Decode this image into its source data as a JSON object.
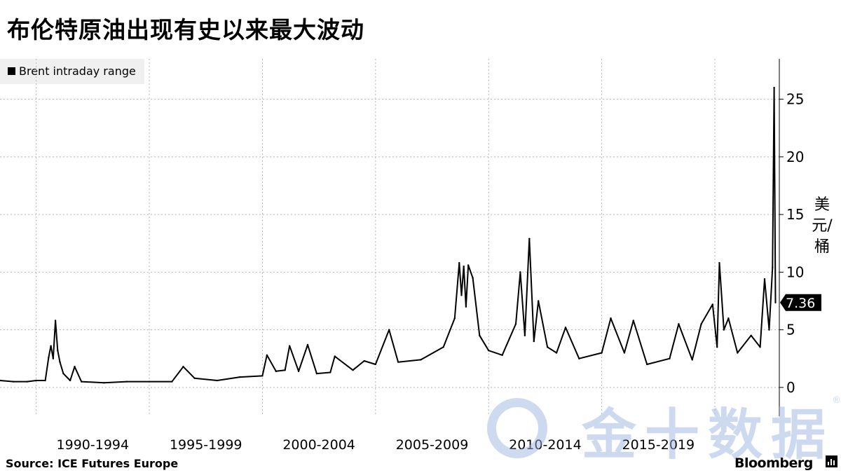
{
  "title": "布伦特原油出现有史以来最大波动",
  "legend": {
    "label": "Brent intraday range"
  },
  "unit_label": "美元/桶",
  "source": "Source: ICE Futures Europe",
  "brand": "Bloomberg",
  "watermark": {
    "text": "金十数据",
    "registered": "®"
  },
  "colors": {
    "series": "#000000",
    "grid": "#b5b5b5",
    "watermark": "#9db5df"
  },
  "chart_data": {
    "type": "line",
    "series": [
      {
        "name": "Brent intraday range",
        "points": [
          [
            1988.4,
            0.6
          ],
          [
            1989.0,
            0.5
          ],
          [
            1989.6,
            0.5
          ],
          [
            1990.0,
            0.6
          ],
          [
            1990.4,
            0.6
          ],
          [
            1990.55,
            2.6
          ],
          [
            1990.65,
            3.6
          ],
          [
            1990.75,
            2.5
          ],
          [
            1990.85,
            5.8
          ],
          [
            1990.95,
            3.2
          ],
          [
            1991.05,
            2.2
          ],
          [
            1991.2,
            1.2
          ],
          [
            1991.5,
            0.6
          ],
          [
            1991.7,
            1.8
          ],
          [
            1992.0,
            0.5
          ],
          [
            1993.0,
            0.4
          ],
          [
            1994.0,
            0.5
          ],
          [
            1995.0,
            0.5
          ],
          [
            1996.0,
            0.5
          ],
          [
            1996.5,
            1.8
          ],
          [
            1997.0,
            0.8
          ],
          [
            1998.0,
            0.6
          ],
          [
            1999.0,
            0.9
          ],
          [
            2000.0,
            1.0
          ],
          [
            2000.2,
            2.8
          ],
          [
            2000.6,
            1.4
          ],
          [
            2001.0,
            1.5
          ],
          [
            2001.2,
            3.6
          ],
          [
            2001.6,
            1.4
          ],
          [
            2002.0,
            3.7
          ],
          [
            2002.4,
            1.2
          ],
          [
            2003.0,
            1.3
          ],
          [
            2003.2,
            2.7
          ],
          [
            2004.0,
            1.5
          ],
          [
            2004.5,
            2.3
          ],
          [
            2005.0,
            2.0
          ],
          [
            2005.6,
            5.0
          ],
          [
            2006.0,
            2.2
          ],
          [
            2007.0,
            2.4
          ],
          [
            2008.0,
            3.5
          ],
          [
            2008.5,
            6.0
          ],
          [
            2008.7,
            10.8
          ],
          [
            2008.8,
            8.0
          ],
          [
            2008.9,
            10.5
          ],
          [
            2009.0,
            7.0
          ],
          [
            2009.1,
            10.6
          ],
          [
            2009.3,
            9.5
          ],
          [
            2009.6,
            4.5
          ],
          [
            2010.0,
            3.2
          ],
          [
            2010.6,
            2.8
          ],
          [
            2011.2,
            5.5
          ],
          [
            2011.4,
            10.0
          ],
          [
            2011.6,
            4.5
          ],
          [
            2011.8,
            12.9
          ],
          [
            2012.0,
            4.0
          ],
          [
            2012.2,
            7.5
          ],
          [
            2012.6,
            3.5
          ],
          [
            2013.0,
            3.0
          ],
          [
            2013.4,
            5.2
          ],
          [
            2014.0,
            2.5
          ],
          [
            2015.0,
            3.0
          ],
          [
            2015.4,
            6.0
          ],
          [
            2016.0,
            3.0
          ],
          [
            2016.4,
            5.8
          ],
          [
            2017.0,
            2.0
          ],
          [
            2018.0,
            2.5
          ],
          [
            2018.4,
            5.5
          ],
          [
            2019.0,
            2.4
          ],
          [
            2019.4,
            5.5
          ],
          [
            2019.9,
            7.2
          ],
          [
            2020.1,
            3.5
          ],
          [
            2020.2,
            10.8
          ],
          [
            2020.4,
            5.0
          ],
          [
            2020.6,
            6.0
          ],
          [
            2021.0,
            3.0
          ],
          [
            2021.6,
            4.5
          ],
          [
            2022.0,
            3.5
          ],
          [
            2022.2,
            9.4
          ],
          [
            2022.4,
            5.0
          ],
          [
            2022.55,
            10.4
          ],
          [
            2022.62,
            26.0
          ],
          [
            2022.68,
            7.36
          ]
        ]
      }
    ],
    "x_categories": [
      "1990-1994",
      "1995-1999",
      "2000-2004",
      "2005-2009",
      "2010-2014",
      "2015-2019"
    ],
    "yticks": [
      0,
      5,
      10,
      15,
      20,
      25
    ],
    "ylim": [
      -2.5,
      28.5
    ],
    "y_axis_side": "right",
    "last_value_label": "7.36",
    "last_value": 7.36,
    "grid": true,
    "legend_position": "top-left"
  }
}
